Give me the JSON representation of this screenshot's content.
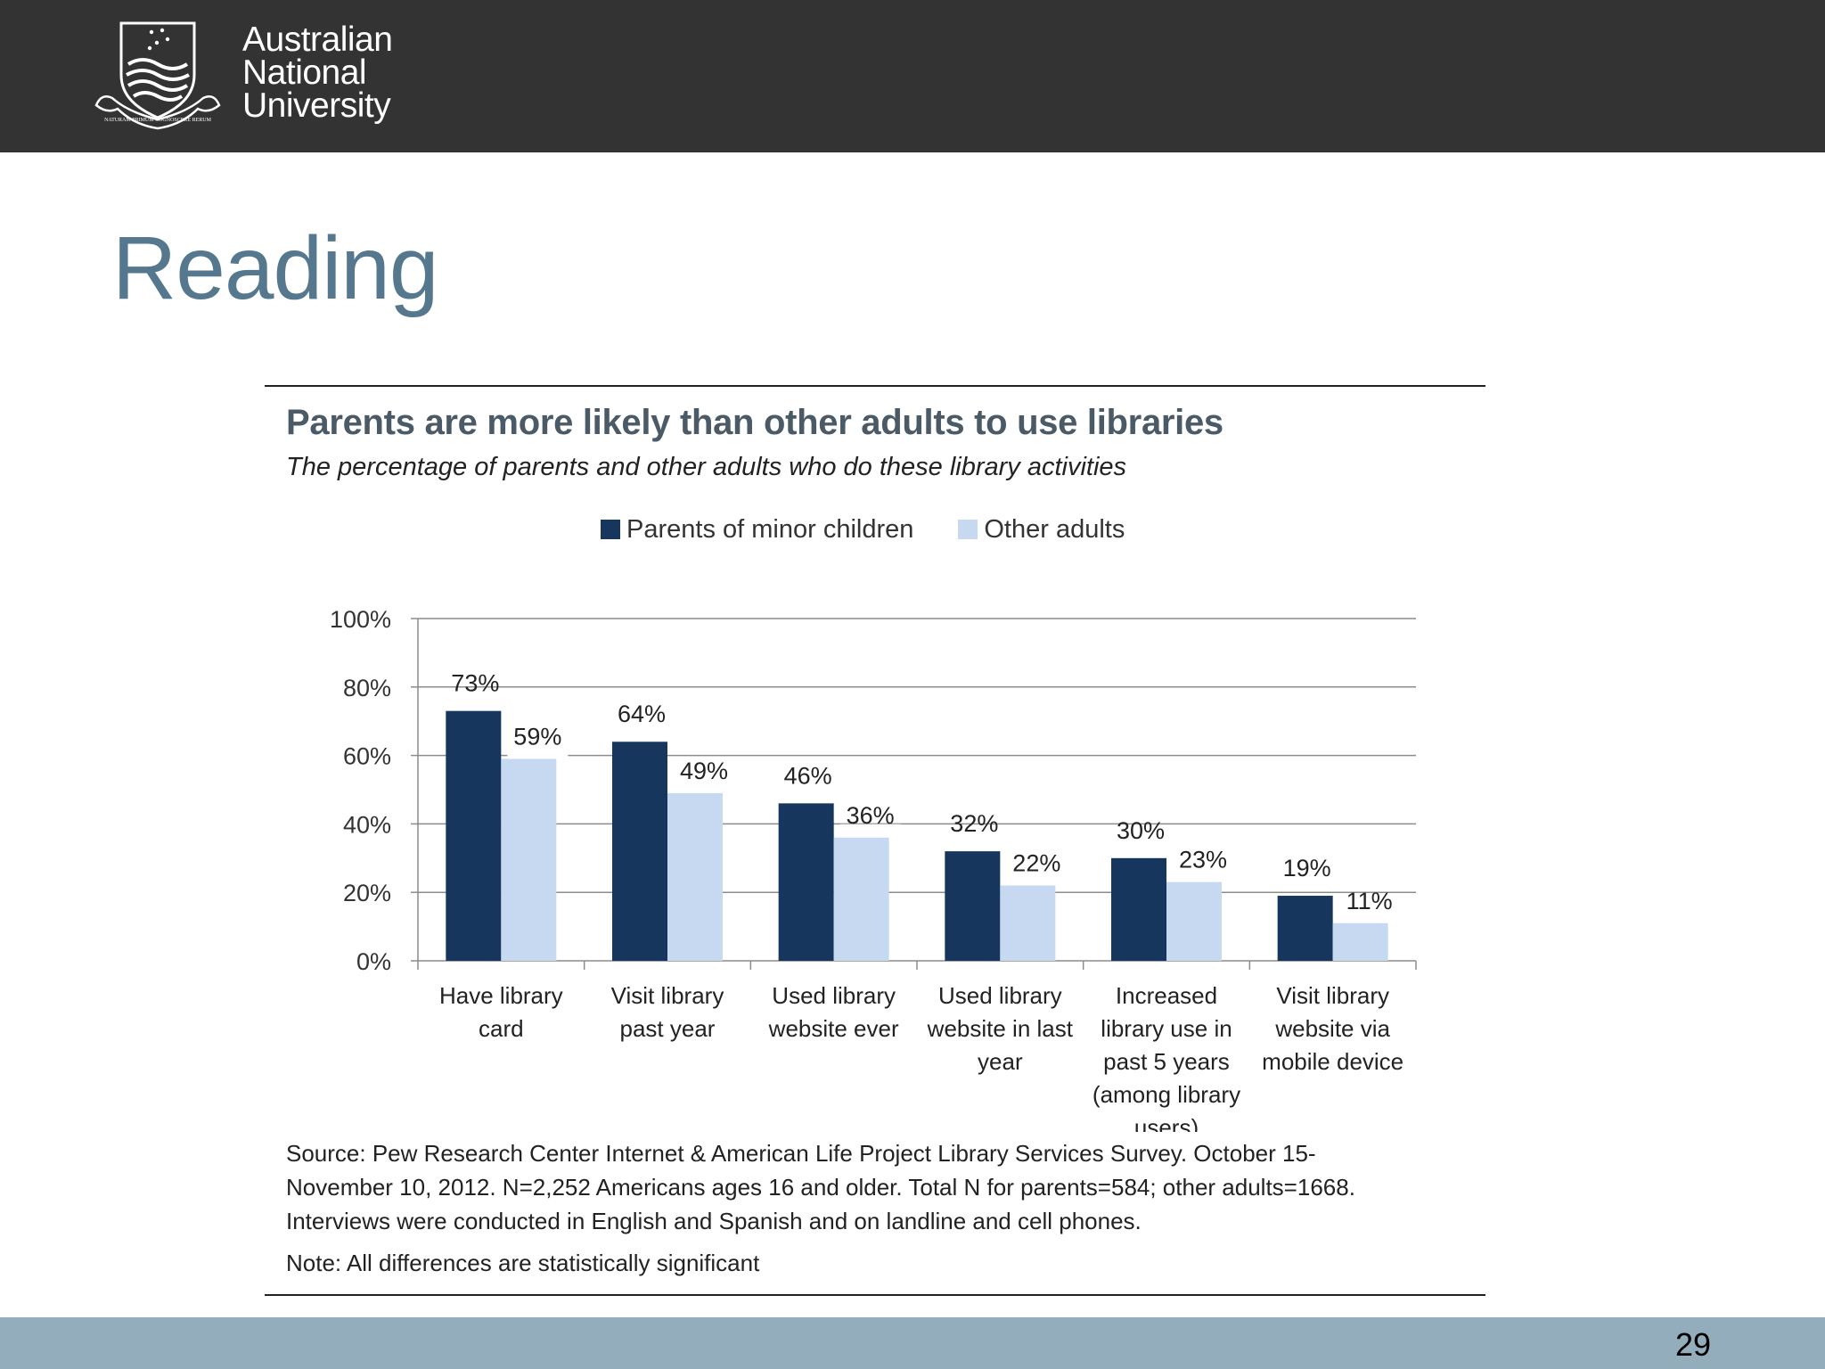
{
  "header": {
    "logo_icon": "anu-crest-icon",
    "logo_motto": "NATURAM PRIMUM COGNOSCERE RERUM",
    "org_name_lines": [
      "Australian",
      "National",
      "University"
    ]
  },
  "slide": {
    "title": "Reading",
    "page_number": "29"
  },
  "colors": {
    "topbar": "#333333",
    "bottombar": "#94adbd",
    "title": "#55788f",
    "parents": "#17365d",
    "other_adults": "#c6d9f1"
  },
  "chart_data": {
    "type": "bar",
    "title": "Parents are more likely than other adults to use libraries",
    "subtitle": "The percentage of parents and other adults who do these library activities",
    "xlabel": "",
    "ylabel": "",
    "ylim": [
      0,
      100
    ],
    "yticks": [
      "0%",
      "20%",
      "40%",
      "60%",
      "80%",
      "100%"
    ],
    "grid": true,
    "legend_position": "top-center",
    "categories": [
      [
        "Have library",
        "card"
      ],
      [
        "Visit library",
        "past year"
      ],
      [
        "Used library",
        "website ever"
      ],
      [
        "Used library",
        "website in last",
        "year"
      ],
      [
        "Increased",
        "library use in",
        "past 5 years",
        "(among library",
        "users)"
      ],
      [
        "Visit library",
        "website via",
        "mobile device"
      ]
    ],
    "series": [
      {
        "name": "Parents of minor children",
        "values": [
          73,
          64,
          46,
          32,
          30,
          19
        ],
        "labels": [
          "73%",
          "64%",
          "46%",
          "32%",
          "30%",
          "19%"
        ]
      },
      {
        "name": "Other adults",
        "values": [
          59,
          49,
          36,
          22,
          23,
          11
        ],
        "labels": [
          "59%",
          "49%",
          "36%",
          "22%",
          "23%",
          "11%"
        ]
      }
    ],
    "source": "Source: Pew Research Center Internet & American Life Project Library Services Survey. October 15-",
    "source_lines": [
      "Source: Pew Research Center Internet & American Life Project Library Services Survey. October 15-",
      "November 10, 2012. N=2,252 Americans ages 16 and older. Total N for parents=584; other adults=1668.",
      "Interviews were conducted in English and Spanish and on landline and cell phones."
    ],
    "note": "Note: All differences are statistically significant"
  }
}
